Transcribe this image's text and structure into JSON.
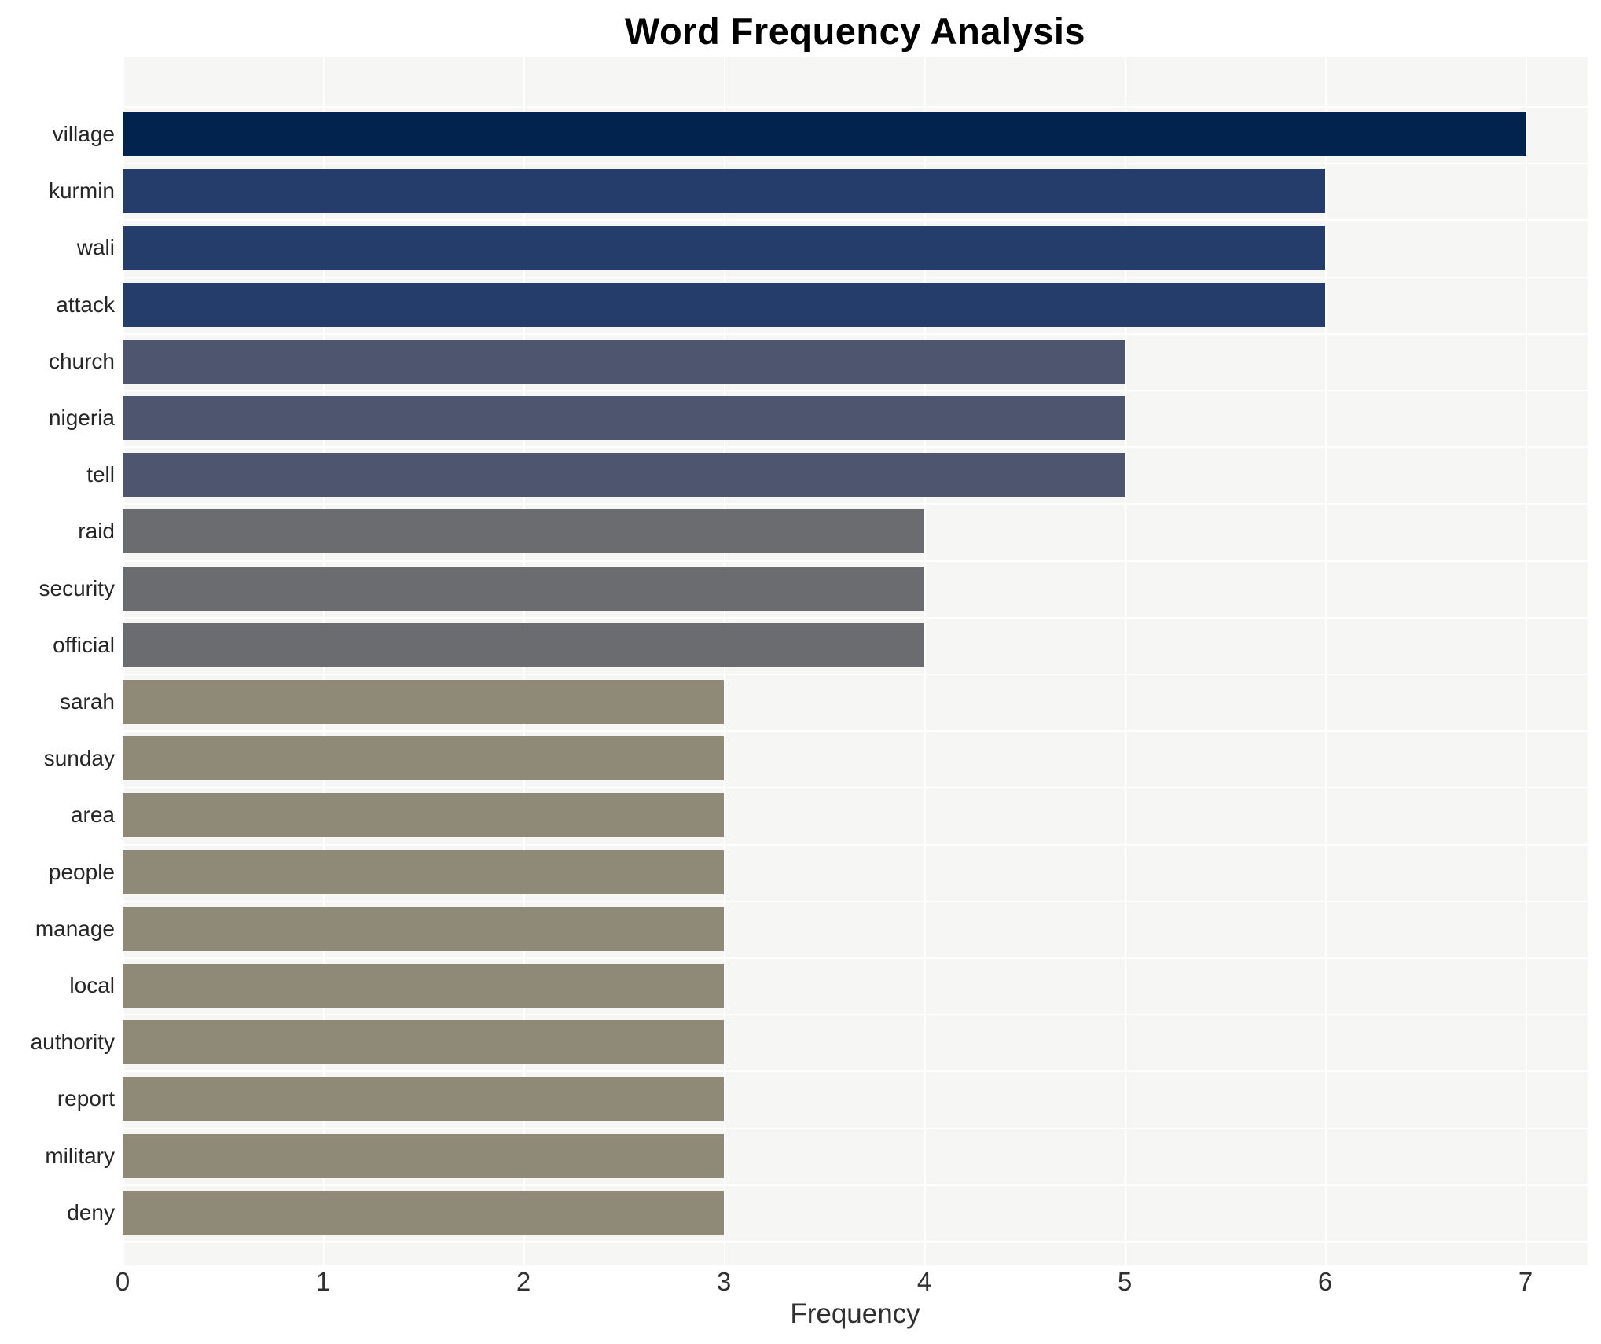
{
  "chart_data": {
    "type": "bar",
    "orientation": "horizontal",
    "title": "Word Frequency Analysis",
    "xlabel": "Frequency",
    "ylabel": "",
    "categories": [
      "village",
      "kurmin",
      "wali",
      "attack",
      "church",
      "nigeria",
      "tell",
      "raid",
      "security",
      "official",
      "sarah",
      "sunday",
      "area",
      "people",
      "manage",
      "local",
      "authority",
      "report",
      "military",
      "deny"
    ],
    "values": [
      7,
      6,
      6,
      6,
      5,
      5,
      5,
      4,
      4,
      4,
      3,
      3,
      3,
      3,
      3,
      3,
      3,
      3,
      3,
      3
    ],
    "xticks": [
      0,
      1,
      2,
      3,
      4,
      5,
      6,
      7
    ],
    "xlim": [
      0,
      7.31
    ],
    "grid": true,
    "legend": false,
    "colors": {
      "plot_background": "#f6f6f5",
      "gridline": "#ffffff",
      "bar_color_by_value": {
        "7": "#01234d",
        "6": "#253d6b",
        "5": "#4d566e",
        "4": "#6b6c70",
        "3": "#8f8a78"
      },
      "title_text": "#000000",
      "label_text": "#262626",
      "tick_text": "#303030"
    }
  }
}
